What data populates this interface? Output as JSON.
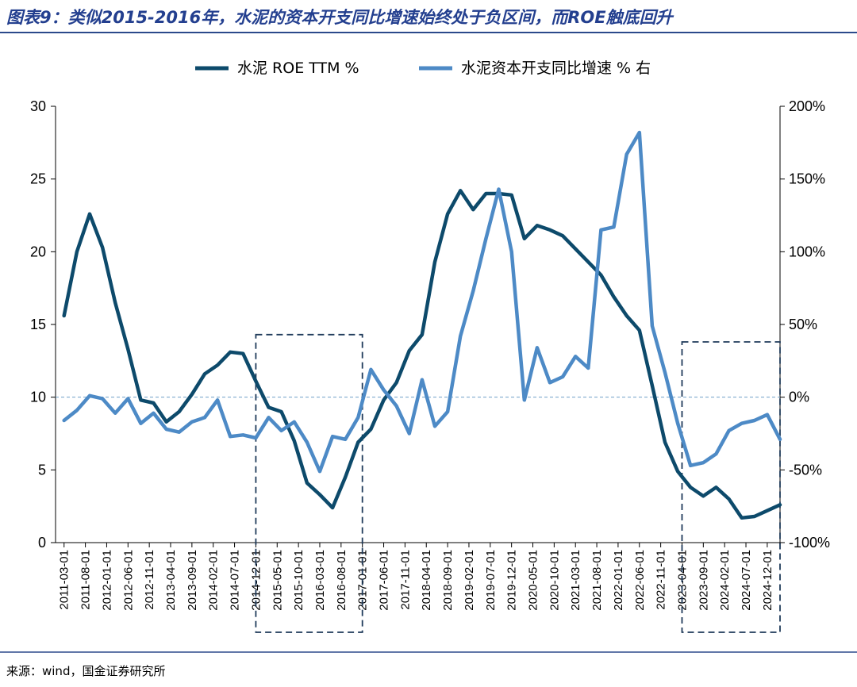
{
  "title": "图表9：类似2015-2016年，水泥的资本开支同比增速始终处于负区间，而ROE触底回升",
  "source": "来源：wind，国金证券研究所",
  "colors": {
    "title": "#233f8f",
    "series1": "#0d4a6b",
    "series2": "#4d8ac6",
    "zero_line": "#6ea0c8",
    "box": "#1f3a5a",
    "rule": "#2b4a8b"
  },
  "chart_data": {
    "type": "line",
    "legend_position": "top",
    "grid": false,
    "x_ticks": [
      "2011-03-01",
      "2011-08-01",
      "2012-01-01",
      "2012-06-01",
      "2012-11-01",
      "2013-04-01",
      "2013-09-01",
      "2014-02-01",
      "2014-07-01",
      "2014-12-01",
      "2015-05-01",
      "2015-10-01",
      "2016-03-01",
      "2016-08-01",
      "2017-01-01",
      "2017-06-01",
      "2017-11-01",
      "2018-04-01",
      "2018-09-01",
      "2019-02-01",
      "2019-07-01",
      "2019-12-01",
      "2020-05-01",
      "2020-10-01",
      "2021-03-01",
      "2021-08-01",
      "2022-01-01",
      "2022-06-01",
      "2022-11-01",
      "2023-04-01",
      "2023-09-01",
      "2024-02-01",
      "2024-07-01",
      "2024-12-01"
    ],
    "y_left": {
      "min": 0,
      "max": 30,
      "ticks": [
        "0",
        "5",
        "10",
        "15",
        "20",
        "25",
        "30"
      ]
    },
    "y_right": {
      "min": -100,
      "max": 200,
      "ticks": [
        "-100%",
        "-50%",
        "0%",
        "50%",
        "100%",
        "150%",
        "200%"
      ]
    },
    "series": [
      {
        "name": "水泥 ROE TTM %",
        "axis": "left",
        "points": [
          [
            "2011-03-01",
            15.6
          ],
          [
            "2011-06-01",
            20.0
          ],
          [
            "2011-09-01",
            22.6
          ],
          [
            "2011-12-01",
            20.3
          ],
          [
            "2012-03-01",
            16.5
          ],
          [
            "2012-06-01",
            13.3
          ],
          [
            "2012-09-01",
            9.8
          ],
          [
            "2012-12-01",
            9.6
          ],
          [
            "2013-03-01",
            8.3
          ],
          [
            "2013-06-01",
            9.0
          ],
          [
            "2013-09-01",
            10.2
          ],
          [
            "2013-12-01",
            11.6
          ],
          [
            "2014-03-01",
            12.2
          ],
          [
            "2014-06-01",
            13.1
          ],
          [
            "2014-09-01",
            13.0
          ],
          [
            "2014-12-01",
            11.1
          ],
          [
            "2015-03-01",
            9.3
          ],
          [
            "2015-06-01",
            9.0
          ],
          [
            "2015-09-01",
            7.0
          ],
          [
            "2015-12-01",
            4.1
          ],
          [
            "2016-03-01",
            3.3
          ],
          [
            "2016-06-01",
            2.4
          ],
          [
            "2016-09-01",
            4.5
          ],
          [
            "2016-12-01",
            6.9
          ],
          [
            "2017-03-01",
            7.8
          ],
          [
            "2017-06-01",
            9.8
          ],
          [
            "2017-09-01",
            11.0
          ],
          [
            "2017-12-01",
            13.2
          ],
          [
            "2018-03-01",
            14.3
          ],
          [
            "2018-06-01",
            19.3
          ],
          [
            "2018-09-01",
            22.6
          ],
          [
            "2018-12-01",
            24.2
          ],
          [
            "2019-03-01",
            22.9
          ],
          [
            "2019-06-01",
            24.0
          ],
          [
            "2019-09-01",
            24.0
          ],
          [
            "2019-12-01",
            23.9
          ],
          [
            "2020-03-01",
            20.9
          ],
          [
            "2020-06-01",
            21.8
          ],
          [
            "2020-09-01",
            21.5
          ],
          [
            "2020-12-01",
            21.1
          ],
          [
            "2021-03-01",
            20.2
          ],
          [
            "2021-06-01",
            19.3
          ],
          [
            "2021-09-01",
            18.4
          ],
          [
            "2021-12-01",
            16.9
          ],
          [
            "2022-03-01",
            15.6
          ],
          [
            "2022-06-01",
            14.6
          ],
          [
            "2022-09-01",
            10.8
          ],
          [
            "2022-12-01",
            6.9
          ],
          [
            "2023-03-01",
            4.9
          ],
          [
            "2023-06-01",
            3.8
          ],
          [
            "2023-09-01",
            3.2
          ],
          [
            "2023-12-01",
            3.8
          ],
          [
            "2024-03-01",
            3.0
          ],
          [
            "2024-06-01",
            1.7
          ],
          [
            "2024-09-01",
            1.8
          ],
          [
            "2024-12-01",
            2.2
          ],
          [
            "2025-03-01",
            2.6
          ]
        ]
      },
      {
        "name": "水泥资本开支同比增速 % 右",
        "axis": "right",
        "points": [
          [
            "2011-03-01",
            -16
          ],
          [
            "2011-06-01",
            -9
          ],
          [
            "2011-09-01",
            1
          ],
          [
            "2011-12-01",
            -1
          ],
          [
            "2012-03-01",
            -11
          ],
          [
            "2012-06-01",
            -1
          ],
          [
            "2012-09-01",
            -18
          ],
          [
            "2012-12-01",
            -11
          ],
          [
            "2013-03-01",
            -22
          ],
          [
            "2013-06-01",
            -24
          ],
          [
            "2013-09-01",
            -17
          ],
          [
            "2013-12-01",
            -14
          ],
          [
            "2014-03-01",
            -2
          ],
          [
            "2014-06-01",
            -27
          ],
          [
            "2014-09-01",
            -26
          ],
          [
            "2014-12-01",
            -28
          ],
          [
            "2015-03-01",
            -14
          ],
          [
            "2015-06-01",
            -23
          ],
          [
            "2015-09-01",
            -17
          ],
          [
            "2015-12-01",
            -31
          ],
          [
            "2016-03-01",
            -51
          ],
          [
            "2016-06-01",
            -27
          ],
          [
            "2016-09-01",
            -29
          ],
          [
            "2016-12-01",
            -14
          ],
          [
            "2017-03-01",
            19
          ],
          [
            "2017-06-01",
            5
          ],
          [
            "2017-09-01",
            -6
          ],
          [
            "2017-12-01",
            -25
          ],
          [
            "2018-03-01",
            12
          ],
          [
            "2018-06-01",
            -20
          ],
          [
            "2018-09-01",
            -10
          ],
          [
            "2018-12-01",
            42
          ],
          [
            "2019-03-01",
            73
          ],
          [
            "2019-06-01",
            109
          ],
          [
            "2019-09-01",
            143
          ],
          [
            "2019-12-01",
            100
          ],
          [
            "2020-03-01",
            -2
          ],
          [
            "2020-06-01",
            34
          ],
          [
            "2020-09-01",
            10
          ],
          [
            "2020-12-01",
            14
          ],
          [
            "2021-03-01",
            28
          ],
          [
            "2021-06-01",
            20
          ],
          [
            "2021-09-01",
            115
          ],
          [
            "2021-12-01",
            117
          ],
          [
            "2022-03-01",
            167
          ],
          [
            "2022-06-01",
            182
          ],
          [
            "2022-09-01",
            49
          ],
          [
            "2022-12-01",
            17
          ],
          [
            "2023-03-01",
            -18
          ],
          [
            "2023-06-01",
            -47
          ],
          [
            "2023-09-01",
            -45
          ],
          [
            "2023-12-01",
            -39
          ],
          [
            "2024-03-01",
            -23
          ],
          [
            "2024-06-01",
            -18
          ],
          [
            "2024-09-01",
            -16
          ],
          [
            "2024-12-01",
            -12
          ],
          [
            "2025-03-01",
            -29
          ]
        ]
      }
    ],
    "reference_line": {
      "axis": "right",
      "value": 0,
      "style": "dashed"
    },
    "highlight_boxes": [
      {
        "from": "2014-12-01",
        "to": "2017-01-01",
        "right_axis_top": 43,
        "style": "dashed"
      },
      {
        "from": "2023-04-01",
        "to": "2025-03-01",
        "right_axis_top": 38,
        "style": "dashed"
      }
    ]
  }
}
